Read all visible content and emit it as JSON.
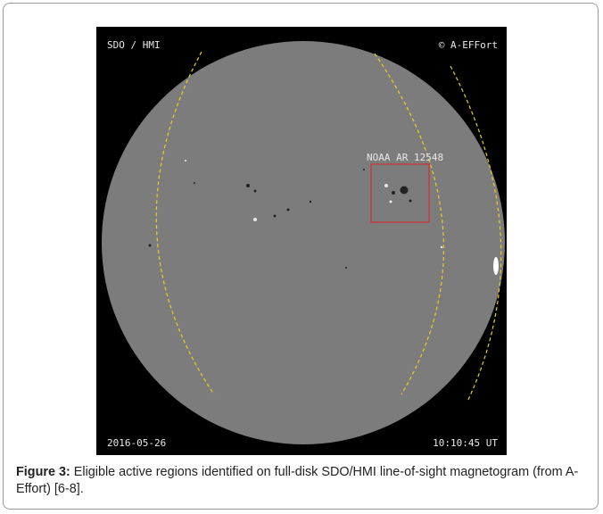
{
  "figure": {
    "image": {
      "instrument_label": "SDO / HMI",
      "credit_label": "© A-EFFort",
      "region_label": "NOAA AR 12548",
      "date_label": "2016-05-26",
      "time_label": "10:10:45 UT"
    },
    "caption": {
      "label": "Figure 3:",
      "text": "Eligible active regions identified on full-disk SDO/HMI line-of-sight magnetogram (from A-Effort) [6-8]."
    }
  }
}
